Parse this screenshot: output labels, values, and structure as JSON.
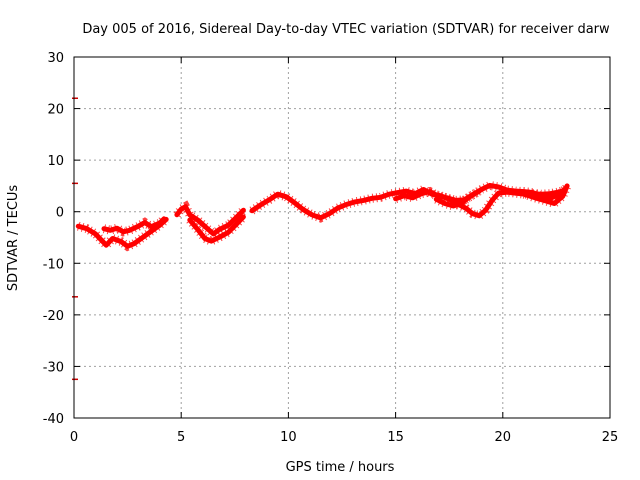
{
  "chart_data": {
    "type": "line",
    "title": "Day 005 of 2016, Sidereal Day-to-day VTEC variation (SDTVAR) for receiver darw",
    "xlabel": "GPS time / hours",
    "ylabel": "SDTVAR / TECUs",
    "xlim": [
      0,
      25
    ],
    "ylim": [
      -40,
      30
    ],
    "xticks": [
      0,
      5,
      10,
      15,
      20,
      25
    ],
    "yticks": [
      -40,
      -30,
      -20,
      -10,
      0,
      10,
      20,
      30
    ],
    "grid": true,
    "legend": "none",
    "series": [
      {
        "name": "SDTVAR",
        "color": "#ff0000",
        "segments": [
          [
            [
              0.2,
              -2.8
            ],
            [
              0.6,
              -3.3
            ],
            [
              1.0,
              -4.3
            ],
            [
              1.3,
              -5.6
            ],
            [
              1.5,
              -6.5
            ],
            [
              1.8,
              -5.2
            ],
            [
              2.2,
              -5.8
            ],
            [
              2.5,
              -6.7
            ],
            [
              2.8,
              -6.2
            ],
            [
              3.2,
              -5.0
            ],
            [
              3.6,
              -3.8
            ],
            [
              4.0,
              -2.6
            ],
            [
              4.3,
              -1.5
            ]
          ],
          [
            [
              1.4,
              -3.3
            ],
            [
              1.7,
              -3.6
            ],
            [
              2.0,
              -3.2
            ],
            [
              2.3,
              -3.9
            ],
            [
              2.6,
              -3.6
            ],
            [
              3.0,
              -2.8
            ],
            [
              3.3,
              -2.1
            ],
            [
              3.6,
              -2.9
            ],
            [
              4.0,
              -2.2
            ],
            [
              4.2,
              -1.4
            ]
          ],
          [
            [
              4.8,
              -0.6
            ],
            [
              5.0,
              0.5
            ],
            [
              5.2,
              1.0
            ],
            [
              5.4,
              -0.6
            ],
            [
              5.8,
              -1.7
            ],
            [
              6.2,
              -3.2
            ],
            [
              6.5,
              -4.3
            ],
            [
              6.8,
              -3.4
            ],
            [
              7.2,
              -2.6
            ],
            [
              7.6,
              -1.0
            ],
            [
              7.9,
              0.3
            ]
          ],
          [
            [
              5.4,
              -1.6
            ],
            [
              5.8,
              -3.6
            ],
            [
              6.1,
              -5.2
            ],
            [
              6.4,
              -5.7
            ],
            [
              6.8,
              -4.9
            ],
            [
              7.2,
              -4.0
            ],
            [
              7.6,
              -2.3
            ],
            [
              7.9,
              -1.0
            ]
          ],
          [
            [
              8.3,
              0.2
            ],
            [
              8.7,
              1.3
            ],
            [
              9.1,
              2.3
            ],
            [
              9.5,
              3.4
            ],
            [
              9.9,
              2.9
            ],
            [
              10.3,
              1.7
            ],
            [
              10.7,
              0.4
            ],
            [
              11.1,
              -0.6
            ],
            [
              11.5,
              -1.2
            ],
            [
              11.9,
              -0.4
            ],
            [
              12.3,
              0.7
            ],
            [
              12.7,
              1.4
            ],
            [
              13.1,
              1.9
            ],
            [
              13.5,
              2.2
            ],
            [
              13.9,
              2.6
            ],
            [
              14.3,
              2.8
            ],
            [
              14.7,
              3.4
            ],
            [
              15.1,
              3.7
            ],
            [
              15.5,
              4.0
            ],
            [
              15.9,
              3.5
            ],
            [
              16.3,
              4.3
            ],
            [
              16.7,
              3.4
            ],
            [
              17.1,
              3.1
            ],
            [
              17.5,
              2.4
            ],
            [
              17.9,
              1.5
            ],
            [
              18.3,
              0.6
            ],
            [
              18.6,
              -0.4
            ],
            [
              18.9,
              -0.8
            ],
            [
              19.2,
              0.3
            ],
            [
              19.5,
              2.2
            ],
            [
              19.8,
              3.6
            ],
            [
              20.2,
              3.8
            ],
            [
              20.6,
              3.6
            ],
            [
              21.0,
              3.4
            ],
            [
              21.4,
              3.5
            ],
            [
              21.8,
              3.4
            ],
            [
              22.2,
              3.5
            ],
            [
              22.6,
              3.8
            ],
            [
              22.9,
              4.2
            ]
          ],
          [
            [
              15.0,
              2.5
            ],
            [
              15.4,
              3.1
            ],
            [
              15.8,
              2.7
            ],
            [
              16.2,
              3.5
            ],
            [
              16.6,
              3.9
            ],
            [
              17.0,
              3.0
            ],
            [
              17.4,
              2.7
            ],
            [
              17.8,
              2.2
            ],
            [
              18.2,
              2.3
            ],
            [
              18.6,
              3.3
            ],
            [
              19.0,
              4.3
            ],
            [
              19.4,
              5.1
            ],
            [
              19.8,
              4.8
            ],
            [
              20.2,
              4.2
            ],
            [
              20.6,
              4.0
            ],
            [
              21.0,
              3.9
            ],
            [
              21.4,
              3.7
            ],
            [
              21.8,
              3.0
            ],
            [
              22.2,
              2.6
            ],
            [
              22.6,
              3.2
            ],
            [
              22.9,
              4.4
            ]
          ],
          [
            [
              16.9,
              2.4
            ],
            [
              17.3,
              1.6
            ],
            [
              17.7,
              1.1
            ],
            [
              18.1,
              1.8
            ],
            [
              18.5,
              3.0
            ],
            [
              18.9,
              4.0
            ]
          ],
          [
            [
              21.0,
              3.4
            ],
            [
              21.5,
              2.7
            ],
            [
              22.0,
              2.1
            ],
            [
              22.4,
              1.6
            ],
            [
              22.8,
              3.0
            ],
            [
              23.0,
              5.0
            ]
          ]
        ]
      }
    ],
    "edge_marks": [
      22,
      5.5,
      -16.5,
      -32.5
    ]
  }
}
